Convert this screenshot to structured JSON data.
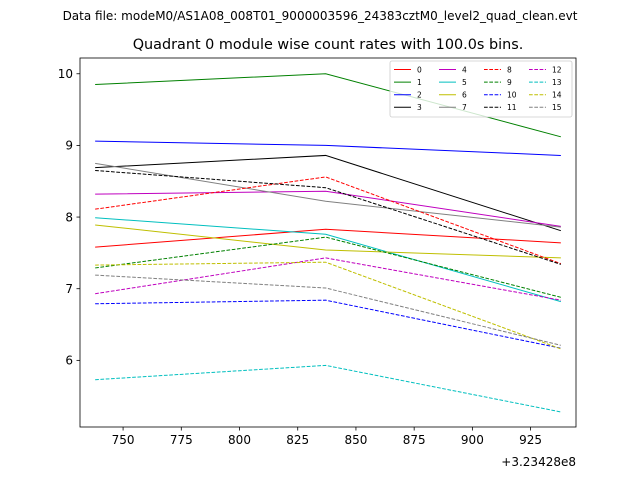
{
  "suptitle": "Data file: modeM0/AS1A08_008T01_9000003596_24383cztM0_level2_quad_clean.evt",
  "chart_data": {
    "type": "line",
    "title": "Quadrant 0 module wise count rates with 100.0s bins.",
    "xlabel": "",
    "ylabel": "",
    "x_offset_label": "+3.23428e8",
    "x": [
      738,
      837,
      938
    ],
    "xlim": [
      731.5,
      944.5
    ],
    "ylim": [
      5.07,
      10.22
    ],
    "xticks": [
      750,
      775,
      800,
      825,
      850,
      875,
      900,
      925
    ],
    "yticks": [
      6,
      7,
      8,
      9,
      10
    ],
    "grid": false,
    "legend_position": "top-right",
    "series": [
      {
        "name": "0",
        "color": "#ff0000",
        "dash": "solid",
        "values": [
          7.58,
          7.83,
          7.64
        ]
      },
      {
        "name": "1",
        "color": "#008000",
        "dash": "solid",
        "values": [
          9.85,
          10.0,
          9.12
        ]
      },
      {
        "name": "2",
        "color": "#0000ff",
        "dash": "solid",
        "values": [
          9.06,
          9.0,
          8.86
        ]
      },
      {
        "name": "3",
        "color": "#000000",
        "dash": "solid",
        "values": [
          8.69,
          8.86,
          7.81
        ]
      },
      {
        "name": "4",
        "color": "#bf00bf",
        "dash": "solid",
        "values": [
          8.32,
          8.36,
          7.87
        ]
      },
      {
        "name": "5",
        "color": "#00bfbf",
        "dash": "solid",
        "values": [
          7.99,
          7.76,
          6.82
        ]
      },
      {
        "name": "6",
        "color": "#bfbf00",
        "dash": "solid",
        "values": [
          7.89,
          7.54,
          7.43
        ]
      },
      {
        "name": "7",
        "color": "#808080",
        "dash": "solid",
        "values": [
          8.75,
          8.22,
          7.86
        ]
      },
      {
        "name": "8",
        "color": "#ff0000",
        "dash": "dashed",
        "values": [
          8.11,
          8.56,
          7.35
        ]
      },
      {
        "name": "9",
        "color": "#008000",
        "dash": "dashed",
        "values": [
          7.29,
          7.72,
          6.88
        ]
      },
      {
        "name": "10",
        "color": "#0000ff",
        "dash": "dashed",
        "values": [
          6.79,
          6.84,
          6.17
        ]
      },
      {
        "name": "11",
        "color": "#000000",
        "dash": "dashed",
        "values": [
          8.65,
          8.41,
          7.34
        ]
      },
      {
        "name": "12",
        "color": "#bf00bf",
        "dash": "dashed",
        "values": [
          6.93,
          7.43,
          6.84
        ]
      },
      {
        "name": "13",
        "color": "#00bfbf",
        "dash": "dashed",
        "values": [
          5.73,
          5.93,
          5.28
        ]
      },
      {
        "name": "14",
        "color": "#bfbf00",
        "dash": "dashed",
        "values": [
          7.33,
          7.37,
          6.16
        ]
      },
      {
        "name": "15",
        "color": "#808080",
        "dash": "dashed",
        "values": [
          7.19,
          7.01,
          6.21
        ]
      }
    ]
  }
}
